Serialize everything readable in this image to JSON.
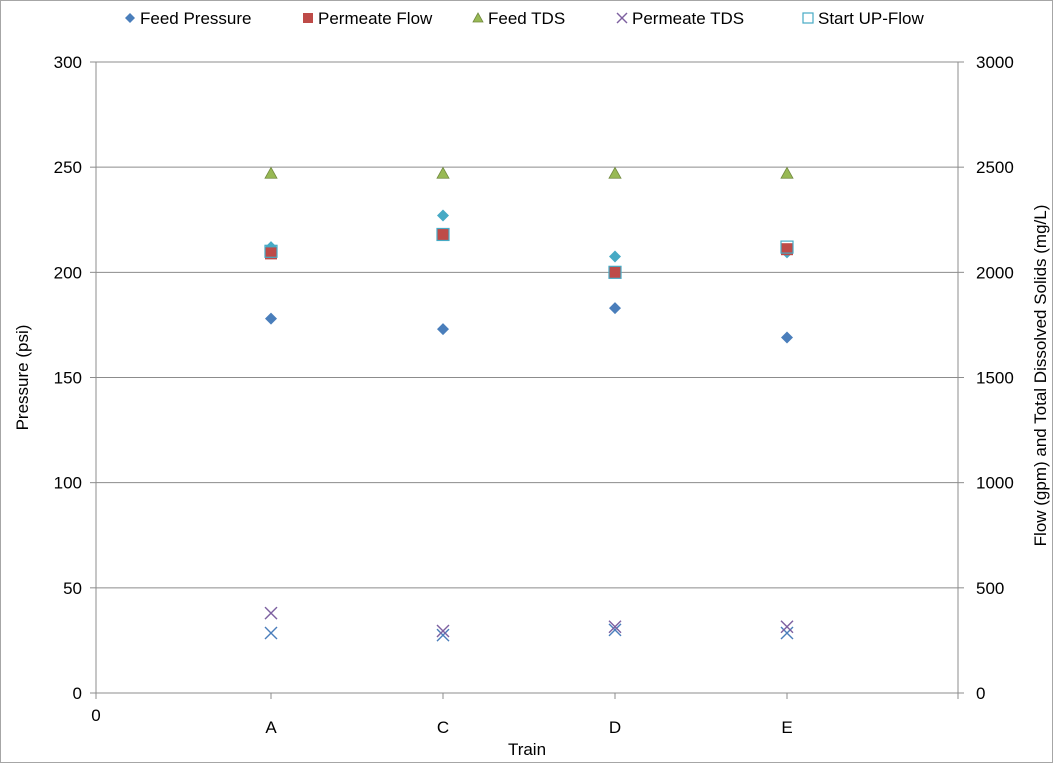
{
  "chart_data": {
    "type": "scatter",
    "categories": [
      "A",
      "C",
      "D",
      "E"
    ],
    "x_origin_label": "0",
    "xlabel": "Train",
    "ylabel": "Pressure (psi)",
    "y2label": "Flow (gpm) and Total Dissolved Solids (mg/L)",
    "ylim": [
      0,
      300
    ],
    "y2lim": [
      0,
      3000
    ],
    "yticks": [
      0,
      50,
      100,
      150,
      200,
      250,
      300
    ],
    "y2ticks": [
      0,
      500,
      1000,
      1500,
      2000,
      2500,
      3000
    ],
    "grid": true,
    "legend_position": "top",
    "series": [
      {
        "name": "Feed Pressure",
        "axis": "left",
        "marker": "diamond",
        "color": "#4a7ebb",
        "values": [
          178,
          173,
          183,
          169
        ]
      },
      {
        "name": "Permeate Flow",
        "axis": "right",
        "marker": "square",
        "color": "#be4b48",
        "values": [
          2090,
          2180,
          2000,
          2110
        ]
      },
      {
        "name": "Feed TDS",
        "axis": "right",
        "marker": "triangle",
        "color": "#98b954",
        "values": [
          2470,
          2470,
          2470,
          2470
        ]
      },
      {
        "name": "Permeate TDS",
        "axis": "right",
        "marker": "x",
        "color": "#7d60a0",
        "values": [
          380,
          295,
          315,
          315
        ]
      },
      {
        "name": "Start UP-Flow",
        "axis": "right",
        "marker": "open-square",
        "color": "#46aac5",
        "values": [
          2100,
          2180,
          2000,
          2120
        ]
      }
    ],
    "unlabeled_series": [
      {
        "axis": "right",
        "marker": "diamond",
        "color": "#46aac5",
        "values": [
          2120,
          2270,
          2075,
          2095
        ]
      },
      {
        "axis": "right",
        "marker": "x",
        "color": "#4a7ebb",
        "values": [
          285,
          275,
          300,
          285
        ]
      }
    ]
  }
}
